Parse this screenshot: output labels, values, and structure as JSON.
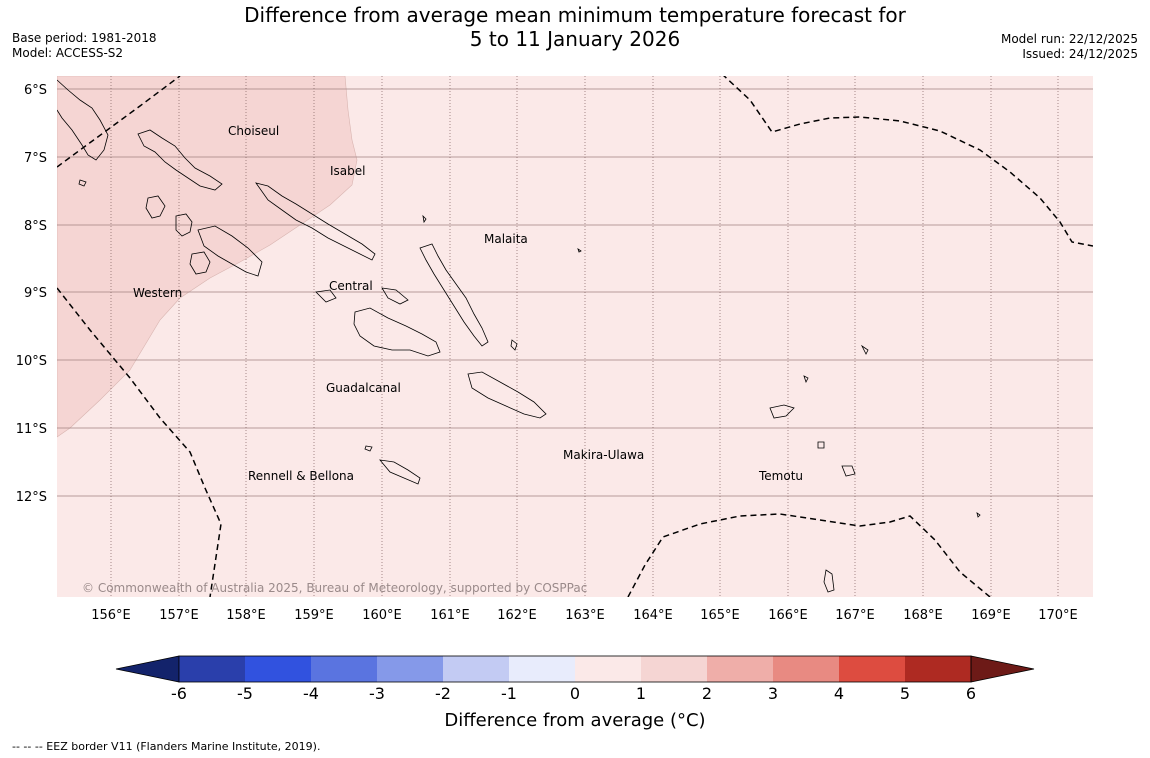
{
  "title": {
    "line1": "Difference from average mean minimum temperature forecast for",
    "line2": "5 to 11 January 2026"
  },
  "meta": {
    "base_period": "Base period: 1981-2018",
    "model": "Model: ACCESS-S2",
    "model_run": "Model run: 22/12/2025",
    "issued": "Issued: 24/12/2025"
  },
  "map": {
    "lat_labels": [
      "6°S",
      "7°S",
      "8°S",
      "9°S",
      "10°S",
      "11°S",
      "12°S"
    ],
    "lon_labels": [
      "156°E",
      "157°E",
      "158°E",
      "159°E",
      "160°E",
      "161°E",
      "162°E",
      "163°E",
      "164°E",
      "165°E",
      "166°E",
      "167°E",
      "168°E",
      "169°E",
      "170°E"
    ],
    "regions": [
      {
        "name": "Choiseul"
      },
      {
        "name": "Isabel"
      },
      {
        "name": "Malaita"
      },
      {
        "name": "Western"
      },
      {
        "name": "Central"
      },
      {
        "name": "Guadalcanal"
      },
      {
        "name": "Makira-Ulawa"
      },
      {
        "name": "Rennell & Bellona"
      },
      {
        "name": "Temotu"
      }
    ],
    "copyright": "© Commonwealth of Australia 2025, Bureau of Meteorology, supported by COSPPac",
    "colors": {
      "ocean_0_1": "#fbe9e8",
      "anomaly_1_2": "#f5d5d3"
    }
  },
  "colorbar": {
    "ticks": [
      "-6",
      "-5",
      "-4",
      "-3",
      "-2",
      "-1",
      "0",
      "1",
      "2",
      "3",
      "4",
      "5",
      "6"
    ],
    "colors": [
      "#13236b",
      "#2a3fab",
      "#3152df",
      "#5a74e0",
      "#8599e9",
      "#c3cbf3",
      "#e8ecfc",
      "#fbe9e8",
      "#f5d5d3",
      "#efaea9",
      "#e88a82",
      "#dd4c40",
      "#ae2a22",
      "#6d1a17"
    ],
    "label": "Difference from average ($^\\circ$C)",
    "label_display": "Difference from average (°C)"
  },
  "footnote": "--  --  -- EEZ border V11 (Flanders Marine Institute, 2019)."
}
